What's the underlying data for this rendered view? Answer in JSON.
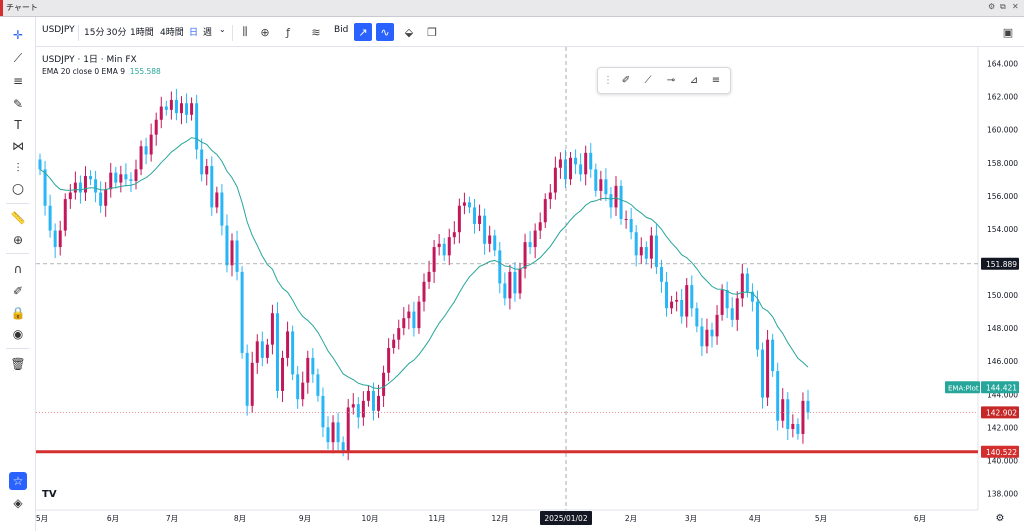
{
  "window": {
    "title": "チャート"
  },
  "toolbar": {
    "symbol": "USDJPY",
    "intervals": [
      "15分",
      "30分",
      "1時間",
      "4時間",
      "日",
      "週"
    ],
    "active_interval": "日",
    "price_type": "Bid"
  },
  "legend": {
    "symbol_line": "USDJPY · 1日 · Min FX",
    "ema_label": "EMA 20 close 0 EMA 9",
    "ema_value": "155.588"
  },
  "colors": {
    "up": "#c2185b",
    "down": "#29b6f6",
    "ema": "#26a69a",
    "hline": "#d32f2f",
    "accent": "#2962ff"
  },
  "chart_data": {
    "type": "candlestick",
    "title": "",
    "ylim": [
      137,
      165
    ],
    "y_ticks": [
      "164.000",
      "162.000",
      "160.000",
      "158.000",
      "156.000",
      "154.000",
      "152.000",
      "150.000",
      "148.000",
      "146.000",
      "144.000",
      "142.000",
      "140.000",
      "138.000"
    ],
    "x_ticks": [
      "5月",
      "6月",
      "7月",
      "8月",
      "9月",
      "10月",
      "11月",
      "12月",
      "2025/01/02",
      "2月",
      "3月",
      "4月",
      "5月",
      "6月"
    ],
    "crosshair_price": "151.889",
    "crosshair_date": "2025/01/02",
    "last_price": "142.902",
    "ema_last": "144.421",
    "ema_tag": "EMA:Plot",
    "hline_price": "140.522",
    "series_close": [
      157.6,
      155.4,
      153.9,
      152.9,
      153.9,
      155.8,
      156.2,
      156.8,
      156.2,
      157.2,
      157.0,
      156.2,
      155.4,
      156.4,
      157.4,
      156.8,
      157.3,
      157.0,
      156.9,
      157.6,
      159.0,
      158.5,
      159.7,
      160.6,
      161.4,
      161.2,
      161.8,
      161.0,
      161.6,
      160.9,
      161.6,
      158.8,
      157.3,
      157.8,
      155.3,
      156.2,
      154.2,
      151.8,
      153.3,
      151.4,
      146.5,
      143.3,
      145.9,
      147.2,
      146.2,
      147.0,
      148.9,
      144.2,
      146.2,
      147.8,
      145.2,
      143.7,
      144.7,
      146.2,
      145.2,
      143.9,
      142.0,
      141.1,
      142.3,
      141.1,
      140.6,
      143.2,
      143.4,
      142.6,
      143.6,
      144.2,
      143.0,
      143.9,
      145.3,
      146.8,
      147.3,
      148.0,
      148.6,
      149.0,
      148.0,
      149.6,
      150.8,
      151.4,
      152.9,
      153.1,
      152.4,
      153.5,
      153.8,
      155.4,
      155.6,
      155.3,
      154.3,
      154.8,
      153.1,
      153.6,
      152.7,
      150.7,
      149.8,
      151.4,
      150.1,
      151.6,
      153.2,
      152.9,
      153.9,
      154.4,
      155.8,
      156.2,
      157.7,
      158.2,
      157.0,
      158.3,
      157.9,
      157.3,
      158.6,
      157.6,
      156.3,
      157.0,
      156.1,
      155.3,
      156.6,
      154.6,
      154.6,
      153.8,
      152.4,
      152.9,
      152.2,
      153.6,
      151.7,
      150.8,
      149.2,
      149.6,
      149.7,
      148.7,
      150.6,
      149.2,
      148.1,
      146.9,
      147.9,
      147.5,
      148.8,
      150.3,
      149.2,
      148.5,
      149.8,
      151.3,
      150.2,
      149.6,
      146.7,
      143.8,
      147.3,
      145.4,
      142.4,
      143.7,
      141.9,
      142.2,
      141.6,
      143.6,
      142.9
    ]
  }
}
